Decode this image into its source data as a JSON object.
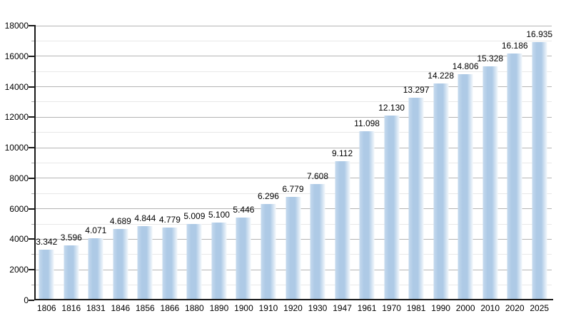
{
  "chart_data": {
    "type": "bar",
    "title": "",
    "xlabel": "",
    "ylabel": "",
    "ylim": [
      0,
      18000
    ],
    "y_major_step": 2000,
    "y_minor_step": 1000,
    "grid": true,
    "legend_position": "none",
    "categories": [
      "1806",
      "1816",
      "1831",
      "1846",
      "1856",
      "1866",
      "1880",
      "1890",
      "1900",
      "1910",
      "1920",
      "1930",
      "1947",
      "1961",
      "1970",
      "1981",
      "1990",
      "2000",
      "2010",
      "2020",
      "2025"
    ],
    "values": [
      3342,
      3596,
      4071,
      4689,
      4844,
      4779,
      5009,
      5100,
      5446,
      6296,
      6779,
      7608,
      9112,
      11098,
      12130,
      13297,
      14228,
      14806,
      15328,
      16186,
      16935
    ],
    "value_labels": [
      "3.342",
      "3.596",
      "4.071",
      "4.689",
      "4.844",
      "4.779",
      "5.009",
      "5.100",
      "5.446",
      "6.296",
      "6.779",
      "7.608",
      "9.112",
      "11.098",
      "12.130",
      "13.297",
      "14.228",
      "14.806",
      "15.328",
      "16.186",
      "16.935"
    ],
    "y_tick_labels": [
      "0",
      "2000",
      "4000",
      "6000",
      "8000",
      "10000",
      "12000",
      "14000",
      "16000",
      "18000"
    ],
    "colors": {
      "background": "#ffffff",
      "bar_fill": "#aecae6",
      "bar_fill_edge": "#c6daee",
      "bar_fill_fade": "#f3f8fc",
      "grid_major": "#b4b4b4",
      "grid_minor": "#e8e8e8",
      "axis": "#1a1a1a",
      "text": "#000000"
    }
  }
}
